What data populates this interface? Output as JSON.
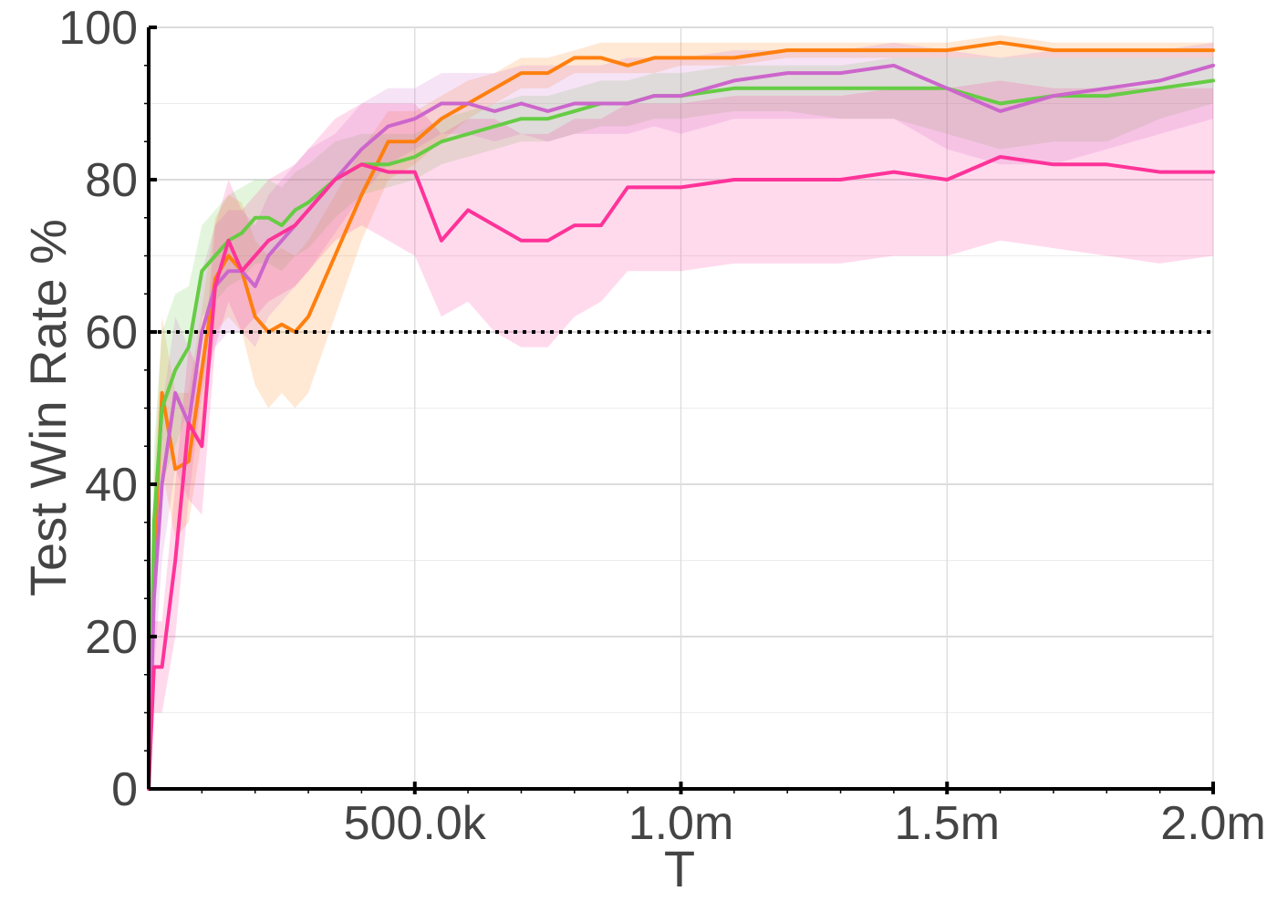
{
  "chart_data": {
    "type": "line",
    "title": "",
    "xlabel": "T",
    "ylabel": "Test Win Rate %",
    "xlim": [
      0,
      2000000
    ],
    "ylim": [
      0,
      100
    ],
    "x_ticks": [
      500000,
      1000000,
      1500000,
      2000000
    ],
    "x_tick_labels": [
      "500.0k",
      "1.0m",
      "1.5m",
      "2.0m"
    ],
    "y_ticks": [
      0,
      20,
      40,
      60,
      80,
      100
    ],
    "y_tick_labels": [
      "0",
      "20",
      "40",
      "60",
      "80",
      "100"
    ],
    "grid": true,
    "reference_line": {
      "y": 60,
      "style": "dotted",
      "color": "#000000"
    },
    "x": [
      0,
      10000,
      25000,
      50000,
      75000,
      100000,
      125000,
      150000,
      175000,
      200000,
      225000,
      250000,
      275000,
      300000,
      350000,
      400000,
      450000,
      500000,
      550000,
      600000,
      650000,
      700000,
      750000,
      800000,
      850000,
      900000,
      950000,
      1000000,
      1100000,
      1200000,
      1300000,
      1400000,
      1500000,
      1600000,
      1700000,
      1800000,
      1900000,
      2000000
    ],
    "series": [
      {
        "color": "#ff7f0e",
        "values": [
          0,
          30,
          52,
          42,
          43,
          55,
          67,
          70,
          68,
          62,
          60,
          61,
          60,
          62,
          70,
          78,
          85,
          85,
          88,
          90,
          92,
          94,
          94,
          96,
          96,
          95,
          96,
          96,
          96,
          97,
          97,
          97,
          97,
          98,
          97,
          97,
          97,
          97
        ],
        "lower": [
          0,
          20,
          42,
          33,
          35,
          46,
          60,
          62,
          60,
          53,
          50,
          52,
          50,
          52,
          62,
          72,
          80,
          82,
          85,
          88,
          90,
          92,
          92,
          94,
          94,
          94,
          94,
          95,
          95,
          96,
          96,
          96,
          96,
          96,
          96,
          96,
          96,
          96
        ],
        "upper": [
          0,
          40,
          62,
          52,
          52,
          63,
          75,
          78,
          77,
          72,
          70,
          71,
          70,
          72,
          78,
          84,
          89,
          89,
          91,
          93,
          94,
          96,
          96,
          97,
          98,
          98,
          98,
          98,
          98,
          98,
          98,
          98,
          98,
          99,
          98,
          98,
          98,
          98
        ]
      },
      {
        "color": "#66cc44",
        "values": [
          0,
          35,
          50,
          55,
          58,
          68,
          70,
          72,
          73,
          75,
          75,
          74,
          76,
          77,
          80,
          82,
          82,
          83,
          85,
          86,
          87,
          88,
          88,
          89,
          90,
          90,
          91,
          91,
          92,
          92,
          92,
          92,
          92,
          90,
          91,
          91,
          92,
          93
        ],
        "lower": [
          0,
          25,
          40,
          45,
          50,
          62,
          64,
          66,
          67,
          69,
          69,
          68,
          70,
          71,
          75,
          78,
          79,
          80,
          82,
          83,
          84,
          85,
          85,
          86,
          87,
          87,
          88,
          88,
          89,
          89,
          88,
          88,
          86,
          84,
          85,
          85,
          88,
          90
        ],
        "upper": [
          0,
          45,
          60,
          65,
          66,
          74,
          76,
          78,
          79,
          80,
          80,
          79,
          81,
          82,
          85,
          86,
          86,
          86,
          88,
          89,
          90,
          91,
          91,
          92,
          93,
          93,
          94,
          94,
          95,
          95,
          95,
          96,
          96,
          96,
          96,
          96,
          96,
          96
        ]
      },
      {
        "color": "#cc66cc",
        "values": [
          0,
          25,
          40,
          52,
          48,
          60,
          66,
          68,
          68,
          66,
          70,
          72,
          74,
          76,
          80,
          84,
          87,
          88,
          90,
          90,
          89,
          90,
          89,
          90,
          90,
          90,
          91,
          91,
          93,
          94,
          94,
          95,
          92,
          89,
          91,
          92,
          93,
          95
        ],
        "lower": [
          0,
          15,
          30,
          42,
          38,
          52,
          58,
          60,
          60,
          58,
          62,
          64,
          66,
          68,
          73,
          78,
          82,
          84,
          86,
          86,
          85,
          86,
          85,
          86,
          86,
          86,
          87,
          86,
          88,
          88,
          88,
          88,
          84,
          82,
          82,
          84,
          86,
          88
        ],
        "upper": [
          0,
          35,
          50,
          62,
          58,
          68,
          74,
          76,
          76,
          74,
          78,
          80,
          82,
          84,
          86,
          90,
          92,
          92,
          94,
          94,
          94,
          95,
          95,
          95,
          95,
          96,
          96,
          96,
          97,
          97,
          97,
          98,
          97,
          96,
          97,
          97,
          97,
          98
        ]
      },
      {
        "color": "#ff3399",
        "values": [
          0,
          16,
          16,
          30,
          48,
          45,
          66,
          72,
          68,
          70,
          72,
          73,
          74,
          76,
          80,
          82,
          81,
          81,
          72,
          76,
          74,
          72,
          72,
          74,
          74,
          79,
          79,
          79,
          80,
          80,
          80,
          81,
          80,
          83,
          82,
          82,
          81,
          81
        ],
        "lower": [
          0,
          10,
          10,
          20,
          38,
          36,
          58,
          64,
          60,
          62,
          64,
          65,
          66,
          68,
          72,
          74,
          72,
          70,
          62,
          64,
          60,
          58,
          58,
          62,
          64,
          68,
          68,
          68,
          69,
          69,
          69,
          70,
          70,
          72,
          71,
          70,
          69,
          70
        ],
        "upper": [
          0,
          22,
          22,
          40,
          58,
          54,
          74,
          80,
          76,
          78,
          80,
          81,
          82,
          84,
          88,
          90,
          90,
          90,
          86,
          88,
          88,
          86,
          86,
          88,
          88,
          90,
          90,
          90,
          91,
          91,
          91,
          92,
          92,
          93,
          92,
          92,
          92,
          92
        ]
      }
    ]
  }
}
